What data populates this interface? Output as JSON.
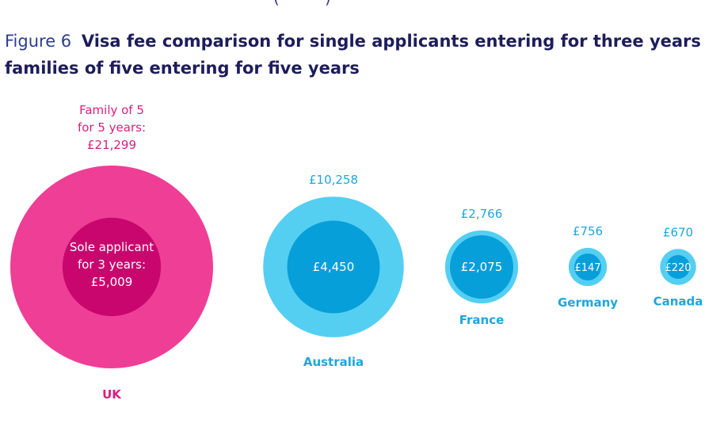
{
  "header_fragment": "(·········)",
  "title": {
    "prefix": "Figure 6",
    "line1": "Visa fee comparison for single applicants entering for three years and",
    "line2": "families of five entering for five years"
  },
  "colors": {
    "uk_outer": "#ee3e96",
    "uk_inner": "#c8066e",
    "uk_text": "#d91e7f",
    "other_outer": "#54cff2",
    "other_inner": "#079fd9",
    "other_text": "#1ea6dc",
    "inner_label": "#ffffff",
    "title": "#1d1d5c"
  },
  "chart_data": {
    "type": "bubble",
    "title": "Visa fee comparison for single applicants entering for three years and families of five entering for five years",
    "categories": [
      "UK",
      "Australia",
      "France",
      "Germany",
      "Canada"
    ],
    "series": [
      {
        "name": "Family of 5 for 5 years",
        "values": [
          21299,
          10258,
          2766,
          756,
          670
        ]
      },
      {
        "name": "Sole applicant for 3 years",
        "values": [
          5009,
          4450,
          2075,
          147,
          220
        ]
      }
    ],
    "outer_labels": [
      [
        "Family of 5",
        "for 5 years:",
        "£21,299"
      ],
      [
        "£10,258"
      ],
      [
        "£2,766"
      ],
      [
        "£756"
      ],
      [
        "£670"
      ]
    ],
    "inner_labels": [
      [
        "Sole applicant",
        "for 3 years:",
        "£5,009"
      ],
      [
        "£4,450"
      ],
      [
        "£2,075"
      ],
      [
        "£147"
      ],
      [
        "£220"
      ]
    ]
  }
}
